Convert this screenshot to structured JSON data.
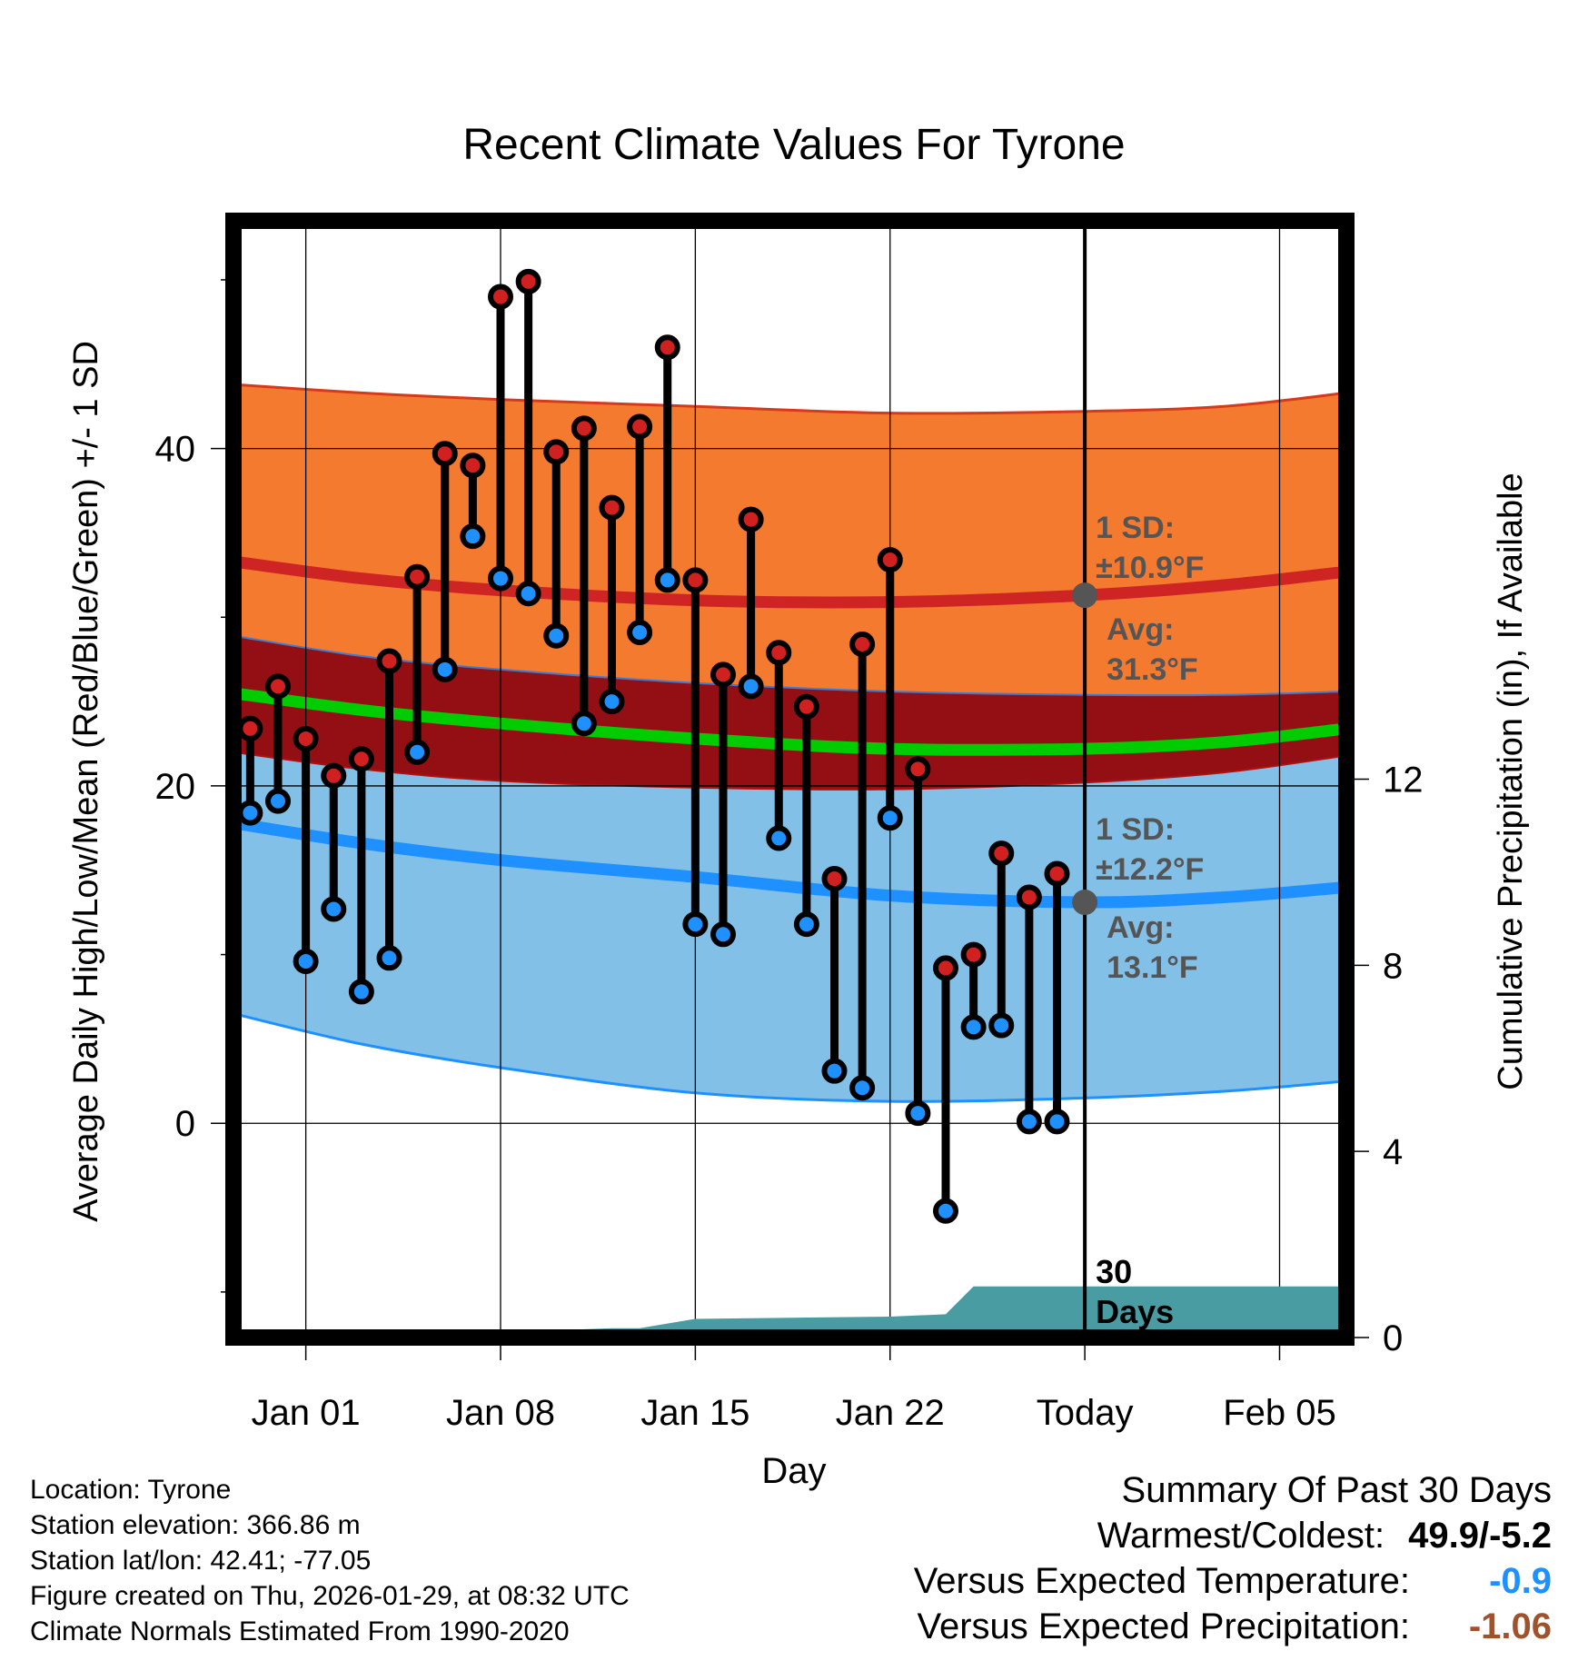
{
  "chart_data": {
    "type": "line",
    "title": "Recent Climate Values For Tyrone",
    "xlabel": "Day",
    "ylabel_left": "Average Daily High/Low/Mean (Red/Blue/Green) +/- 1 SD",
    "ylabel_right": "Cumulative Precipitation (in), If Available",
    "x_range_days": [
      -2.6,
      37.4
    ],
    "x_origin_date": "Jan 01",
    "x_ticks": [
      {
        "day": 0,
        "label": "Jan 01"
      },
      {
        "day": 7,
        "label": "Jan 08"
      },
      {
        "day": 14,
        "label": "Jan 15"
      },
      {
        "day": 21,
        "label": "Jan 22"
      },
      {
        "day": 28,
        "label": "Today"
      },
      {
        "day": 35,
        "label": "Feb 05"
      }
    ],
    "today_day": 28,
    "ylim_left": [
      -12.7,
      53.5
    ],
    "yticks_left": [
      0,
      20,
      40
    ],
    "yminor_left": [
      -10,
      10,
      30,
      50
    ],
    "ylim_right": [
      0,
      24
    ],
    "yticks_right": [
      0,
      4,
      8,
      12
    ],
    "normals": {
      "day": [
        -2.6,
        2,
        7,
        14,
        21,
        28,
        33,
        37.4
      ],
      "high_mean": [
        33.3,
        32.3,
        31.6,
        31.0,
        30.9,
        31.3,
        31.9,
        32.7
      ],
      "high_sd_upper": [
        43.8,
        43.3,
        42.9,
        42.5,
        42.1,
        42.2,
        42.5,
        43.3
      ],
      "high_sd_lower": [
        28.9,
        27.7,
        26.9,
        26.1,
        25.6,
        25.4,
        25.4,
        25.6
      ],
      "low_mean": [
        17.8,
        16.6,
        15.6,
        14.6,
        13.5,
        13.1,
        13.4,
        14.0
      ],
      "low_sd_upper": [
        22.0,
        21.0,
        20.3,
        19.9,
        19.8,
        20.2,
        20.8,
        21.8
      ],
      "low_sd_lower": [
        6.5,
        4.7,
        3.3,
        1.8,
        1.3,
        1.5,
        1.9,
        2.5
      ],
      "mean_temp": [
        25.5,
        24.5,
        23.7,
        22.8,
        22.2,
        22.2,
        22.6,
        23.4
      ]
    },
    "series": [
      {
        "name": "Daily High",
        "color": "#d02020",
        "values": [
          23.4,
          25.9,
          22.8,
          20.6,
          21.6,
          27.4,
          32.4,
          39.7,
          39.0,
          49.0,
          49.9,
          39.8,
          41.2,
          36.5,
          41.3,
          46.0,
          32.2,
          26.6,
          35.8,
          27.9,
          24.7,
          14.5,
          28.4,
          33.4,
          21.0,
          9.2,
          10.0,
          16.0,
          13.4,
          14.8
        ]
      },
      {
        "name": "Daily Low",
        "color": "#1e90ff",
        "values": [
          18.4,
          19.1,
          9.6,
          12.7,
          7.8,
          9.8,
          22.0,
          26.9,
          34.8,
          32.3,
          31.4,
          28.9,
          23.7,
          25.0,
          29.1,
          32.2,
          11.8,
          11.2,
          25.9,
          16.9,
          11.8,
          3.1,
          2.1,
          18.1,
          0.6,
          -5.2,
          5.7,
          5.8,
          0.1,
          0.1
        ]
      },
      {
        "name": "Cumulative Precipitation",
        "color": "#4a9ca3",
        "day": [
          -2.6,
          4.5,
          5.0,
          8.0,
          8.9,
          11.0,
          12.0,
          14.0,
          21.0,
          23.0,
          24.0,
          37.4
        ],
        "values": [
          0,
          0,
          0.05,
          0.07,
          0.15,
          0.2,
          0.2,
          0.4,
          0.45,
          0.5,
          1.1,
          1.1
        ]
      }
    ],
    "x_data_start_day": -2,
    "annotations": {
      "high_sd": {
        "line1": "1 SD:",
        "line2": "±10.9°F"
      },
      "high_avg": {
        "line1": "Avg:",
        "line2": "31.3°F"
      },
      "low_sd": {
        "line1": "1 SD:",
        "line2": "±12.2°F"
      },
      "low_avg": {
        "line1": "Avg:",
        "line2": "13.1°F"
      },
      "window": {
        "line1": "30",
        "line2": "Days"
      }
    },
    "colors": {
      "high_band": "#f47a30",
      "high_mean": "#cf2424",
      "overlap_band": "#930f14",
      "mean_line": "#00cc00",
      "low_band": "#82c0e8",
      "low_mean": "#1e90ff",
      "low_band_edge": "#1e90ff",
      "precip": "#4a9ca3",
      "annotation": "#555555",
      "dot_high": "#d02020",
      "dot_low": "#1e90ff",
      "temp_anomaly": "#1e90ff",
      "precip_anomaly": "#a0522d"
    }
  },
  "footer": {
    "location": "Location: Tyrone",
    "elevation": "Station elevation: 366.86 m",
    "latlon": "Station lat/lon: 42.41; -77.05",
    "created": "Figure created on Thu, 2026-01-29, at 08:32 UTC",
    "normals": "Climate Normals Estimated From 1990-2020"
  },
  "summary": {
    "title": "Summary Of Past 30 Days",
    "warm_cold_label": "Warmest/Coldest:",
    "warm_cold_value": "49.9/-5.2",
    "temp_label": "Versus Expected Temperature:",
    "temp_value": "-0.9",
    "precip_label": "Versus Expected Precipitation:",
    "precip_value": "-1.06"
  }
}
